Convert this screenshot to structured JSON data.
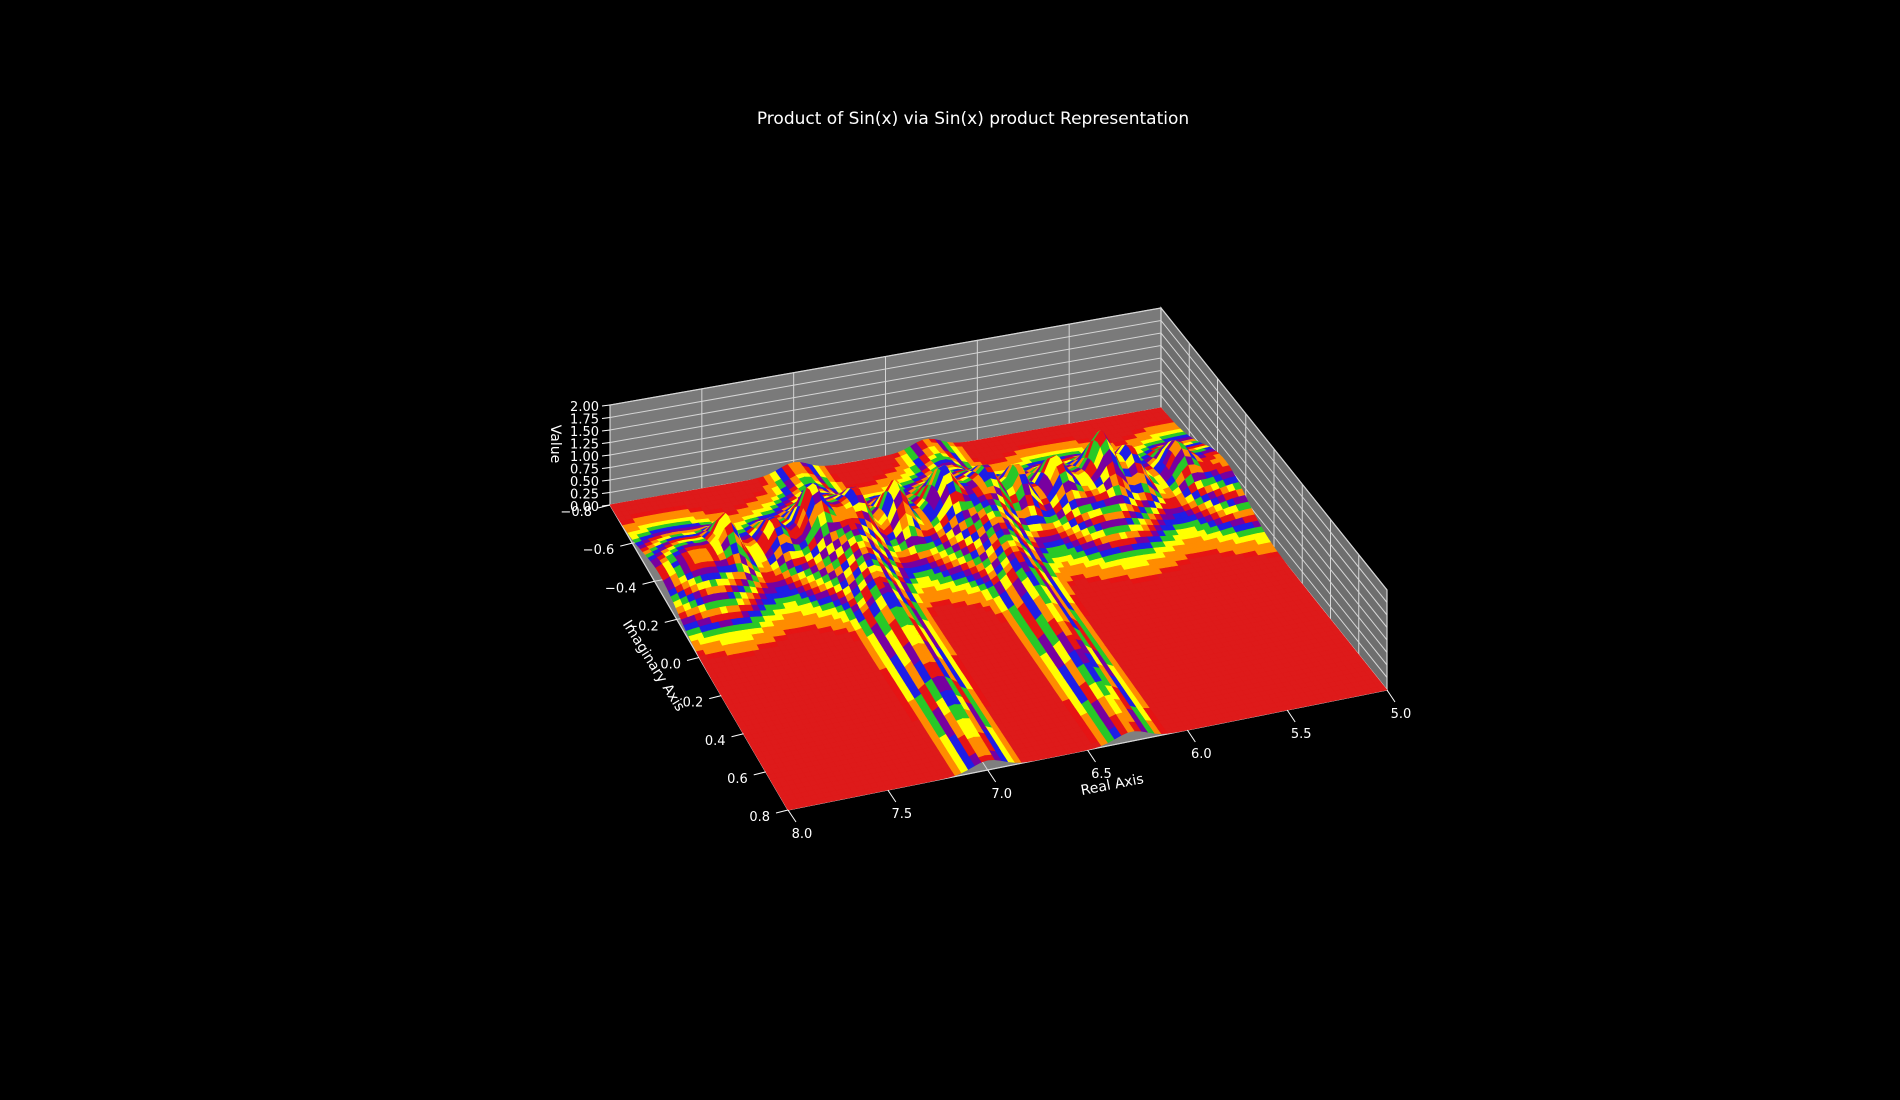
{
  "chart_data": {
    "type": "surface",
    "title": "Product of Sin(x) via Sin(x) product Representation",
    "xlabel": "Real Axis",
    "ylabel": "Imaginary Axis",
    "zlabel": "Value",
    "x_ticks": [
      "5.0",
      "5.5",
      "6.0",
      "6.5",
      "7.0",
      "7.5",
      "8.0"
    ],
    "y_ticks": [
      "−0.8",
      "−0.6",
      "−0.4",
      "−0.2",
      "0.0",
      "0.2",
      "0.4",
      "0.6",
      "0.8"
    ],
    "z_ticks": [
      "0.00",
      "0.25",
      "0.50",
      "0.75",
      "1.00",
      "1.25",
      "1.50",
      "1.75",
      "2.00"
    ],
    "xlim": [
      5.0,
      8.0
    ],
    "ylim": [
      -0.8,
      0.8
    ],
    "zlim": [
      0.0,
      2.0
    ],
    "colormap": "prism",
    "background_color": "#000000",
    "pane_color": "#808080",
    "ridges_x": [
      6.28,
      7.0
    ],
    "peak_x": [
      5.2,
      5.45,
      5.6,
      5.85,
      6.05,
      6.2,
      6.45,
      6.7,
      6.9,
      7.15,
      7.35,
      7.6
    ],
    "grid": true
  }
}
